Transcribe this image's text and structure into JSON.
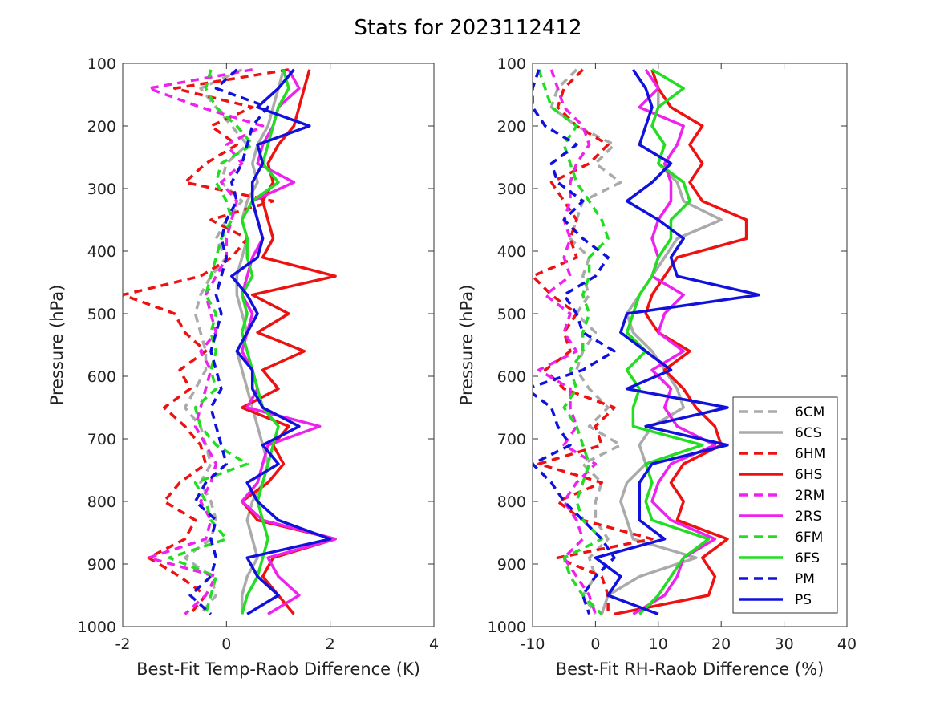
{
  "title": "Stats for 2023112412",
  "colors": {
    "6CM": "#aaaaaa",
    "6CS": "#aaaaaa",
    "6HM": "#ee1111",
    "6HS": "#ee1111",
    "2RM": "#ee22ee",
    "2RS": "#ee22ee",
    "6FM": "#22dd22",
    "6FS": "#22dd22",
    "PM": "#1111dd",
    "PS": "#1111dd"
  },
  "chart_data": [
    {
      "type": "line",
      "xlabel": "Best-Fit Temp-Raob Difference (K)",
      "ylabel": "Pressure (hPa)",
      "xlim": [
        -2,
        4
      ],
      "ylim": [
        1000,
        100
      ],
      "y_reversed": true,
      "xticks": [
        "-2",
        "0",
        "2",
        "4"
      ],
      "yticks": [
        "100",
        "200",
        "300",
        "400",
        "500",
        "600",
        "700",
        "800",
        "900",
        "1000"
      ],
      "y": [
        110,
        140,
        170,
        200,
        230,
        260,
        290,
        320,
        350,
        380,
        410,
        440,
        470,
        500,
        530,
        560,
        590,
        620,
        650,
        680,
        710,
        740,
        770,
        800,
        830,
        860,
        890,
        920,
        950,
        980
      ],
      "series": [
        {
          "name": "6CM",
          "dash": true,
          "values": [
            0.3,
            -0.5,
            -0.2,
            0.1,
            0.4,
            0.0,
            -0.1,
            0.3,
            0.0,
            -0.2,
            0.0,
            -0.3,
            -0.5,
            -0.6,
            -0.5,
            -0.4,
            -0.4,
            -0.6,
            -0.8,
            -0.5,
            -0.4,
            -0.3,
            -0.5,
            -0.3,
            -0.2,
            -0.3,
            -0.8,
            -0.3,
            -0.2,
            -0.5
          ]
        },
        {
          "name": "6CS",
          "dash": false,
          "values": [
            1.1,
            1.0,
            0.9,
            0.8,
            0.6,
            0.5,
            0.6,
            0.4,
            0.3,
            0.4,
            0.3,
            0.2,
            0.2,
            0.3,
            0.4,
            0.2,
            0.3,
            0.4,
            0.5,
            0.6,
            0.7,
            0.8,
            0.7,
            0.5,
            0.4,
            0.5,
            0.6,
            0.4,
            0.3,
            0.3
          ]
        },
        {
          "name": "6HM",
          "dash": true,
          "values": [
            1.2,
            -1.0,
            0.5,
            -0.3,
            0.2,
            -0.4,
            -0.8,
            0.9,
            -0.3,
            0.4,
            0.1,
            -0.5,
            -2.0,
            -1.0,
            -0.8,
            -0.4,
            -0.9,
            -0.7,
            -1.2,
            -0.8,
            -0.5,
            -0.4,
            -0.9,
            -1.2,
            -0.6,
            -0.8,
            -1.5,
            -0.9,
            -0.4,
            -0.7
          ]
        },
        {
          "name": "6HS",
          "dash": false,
          "values": [
            1.6,
            1.5,
            1.4,
            1.3,
            1.0,
            0.8,
            0.9,
            0.7,
            0.8,
            0.9,
            0.7,
            2.1,
            0.5,
            1.2,
            0.6,
            1.5,
            0.7,
            1.0,
            0.3,
            1.2,
            0.9,
            1.1,
            0.8,
            0.3,
            0.6,
            2.1,
            0.9,
            0.7,
            1.0,
            1.3
          ]
        },
        {
          "name": "2RM",
          "dash": true,
          "values": [
            0.5,
            -1.5,
            -0.5,
            0.7,
            0.0,
            0.3,
            -0.1,
            0.2,
            0.1,
            0.0,
            0.0,
            -0.2,
            -0.4,
            -0.3,
            -0.2,
            -0.5,
            -0.3,
            -0.4,
            -0.5,
            -0.6,
            -0.4,
            -0.2,
            -0.3,
            -0.5,
            -0.3,
            -0.4,
            -1.5,
            -0.2,
            -0.4,
            -0.8
          ]
        },
        {
          "name": "2RS",
          "dash": false,
          "values": [
            1.2,
            1.4,
            1.0,
            0.9,
            0.7,
            0.6,
            1.3,
            0.5,
            0.6,
            0.7,
            0.5,
            0.4,
            0.3,
            0.5,
            0.4,
            0.3,
            0.5,
            0.6,
            0.4,
            1.8,
            0.8,
            0.7,
            0.6,
            0.3,
            0.7,
            2.1,
            0.8,
            1.0,
            1.4,
            0.8
          ]
        },
        {
          "name": "6FM",
          "dash": true,
          "values": [
            -0.3,
            -0.4,
            -0.2,
            0.2,
            0.5,
            -0.1,
            -0.2,
            0.0,
            0.1,
            -0.1,
            -0.2,
            -0.3,
            -0.4,
            -0.2,
            -0.3,
            -0.2,
            -0.3,
            -0.2,
            -0.6,
            -0.5,
            -0.2,
            0.4,
            -0.6,
            -0.4,
            -0.3,
            0.0,
            -1.1,
            -0.2,
            -0.3,
            -0.4
          ]
        },
        {
          "name": "6FS",
          "dash": false,
          "values": [
            1.1,
            1.2,
            1.0,
            0.9,
            0.8,
            0.7,
            1.0,
            0.5,
            0.3,
            0.4,
            0.4,
            0.5,
            0.3,
            0.4,
            0.3,
            0.4,
            0.5,
            0.6,
            0.7,
            1.0,
            0.9,
            0.8,
            0.7,
            0.6,
            0.7,
            0.8,
            0.7,
            0.6,
            0.4,
            0.3
          ]
        },
        {
          "name": "PM",
          "dash": true,
          "values": [
            0.2,
            -0.2,
            0.8,
            0.5,
            0.4,
            0.3,
            0.1,
            0.2,
            0.0,
            -0.1,
            0.0,
            -0.1,
            -0.2,
            -0.1,
            -0.2,
            -0.3,
            -0.2,
            -0.1,
            -0.3,
            -0.2,
            -0.1,
            0.0,
            -0.4,
            -0.6,
            -0.2,
            -0.3,
            -0.2,
            -0.3,
            -0.7,
            -0.3
          ]
        },
        {
          "name": "PS",
          "dash": false,
          "values": [
            1.3,
            1.0,
            0.6,
            1.6,
            0.6,
            0.7,
            0.5,
            0.5,
            0.6,
            0.7,
            0.6,
            0.1,
            0.4,
            0.6,
            0.4,
            0.2,
            0.5,
            0.5,
            0.7,
            1.4,
            0.7,
            1.0,
            0.4,
            0.6,
            1.0,
            2.0,
            0.4,
            0.6,
            1.0,
            0.4
          ]
        }
      ]
    },
    {
      "type": "line",
      "xlabel": "Best-Fit RH-Raob Difference (%)",
      "ylabel": "Pressure (hPa)",
      "xlim": [
        -10,
        40
      ],
      "ylim": [
        1000,
        100
      ],
      "y_reversed": true,
      "xticks": [
        "-10",
        "0",
        "10",
        "20",
        "30",
        "40"
      ],
      "yticks": [
        "100",
        "200",
        "300",
        "400",
        "500",
        "600",
        "700",
        "800",
        "900",
        "1000"
      ],
      "y": [
        110,
        140,
        170,
        200,
        230,
        260,
        290,
        320,
        350,
        380,
        410,
        440,
        470,
        500,
        530,
        560,
        590,
        620,
        650,
        680,
        710,
        740,
        770,
        800,
        830,
        860,
        890,
        920,
        950,
        980
      ],
      "series": [
        {
          "name": "6CM",
          "dash": true,
          "values": [
            -3,
            -6,
            -7,
            -3,
            3,
            0,
            4,
            -2,
            -3,
            -4,
            -1,
            -2,
            -1,
            -3,
            0,
            -2,
            -3,
            -1,
            2,
            -1,
            4,
            -2,
            1,
            0,
            0,
            2,
            -1,
            0,
            -2,
            0
          ]
        },
        {
          "name": "6CS",
          "dash": false,
          "values": [
            9,
            10,
            10,
            9,
            11,
            10,
            13,
            14,
            20,
            13,
            11,
            9,
            7,
            5,
            6,
            9,
            11,
            13,
            14,
            9,
            7,
            8,
            5,
            4,
            5,
            6,
            16,
            7,
            2,
            1
          ]
        },
        {
          "name": "6HM",
          "dash": true,
          "values": [
            -2,
            -5,
            -6,
            -3,
            2,
            -1,
            -7,
            -5,
            -3,
            -4,
            -3,
            -10,
            -7,
            -3,
            -5,
            -4,
            -8,
            -5,
            3,
            0,
            1,
            -9,
            1,
            -6,
            -2,
            9,
            -6,
            1,
            2,
            2
          ]
        },
        {
          "name": "6HS",
          "dash": false,
          "values": [
            9,
            10,
            12,
            17,
            15,
            17,
            15,
            17,
            24,
            24,
            13,
            11,
            9,
            8,
            10,
            15,
            11,
            14,
            16,
            19,
            20,
            14,
            12,
            14,
            13,
            21,
            17,
            19,
            18,
            3
          ]
        },
        {
          "name": "2RM",
          "dash": true,
          "values": [
            -7,
            -6,
            -5,
            -2,
            -1,
            -3,
            -4,
            -4,
            -5,
            -4,
            -5,
            -4,
            -8,
            -4,
            -5,
            -3,
            -9,
            -4,
            -4,
            -3,
            -5,
            0,
            -3,
            -5,
            -3,
            -2,
            -5,
            -3,
            -1,
            0
          ]
        },
        {
          "name": "2RS",
          "dash": false,
          "values": [
            8,
            10,
            7,
            14,
            13,
            11,
            12,
            12,
            10,
            9,
            10,
            9,
            14,
            11,
            10,
            14,
            9,
            12,
            11,
            13,
            19,
            12,
            10,
            9,
            12,
            19,
            14,
            13,
            11,
            6
          ]
        },
        {
          "name": "6FM",
          "dash": true,
          "values": [
            -9,
            -8,
            -7,
            -3,
            -5,
            -4,
            -3,
            -1,
            1,
            2,
            -1,
            -1,
            -2,
            -1,
            -2,
            -2,
            -4,
            -3,
            -5,
            -3,
            -2,
            -1,
            -2,
            -3,
            -2,
            1,
            -5,
            -4,
            -2,
            1
          ]
        },
        {
          "name": "6FS",
          "dash": false,
          "values": [
            9,
            14,
            10,
            9,
            11,
            10,
            14,
            15,
            12,
            12,
            10,
            9,
            7,
            6,
            5,
            8,
            5,
            7,
            6,
            6,
            17,
            8,
            9,
            8,
            9,
            18,
            14,
            12,
            10,
            7
          ]
        },
        {
          "name": "PM",
          "dash": true,
          "values": [
            -9,
            -10,
            -10,
            -8,
            -3,
            -7,
            -6,
            -2,
            -5,
            -2,
            2,
            0,
            -5,
            -3,
            -2,
            3,
            -2,
            -11,
            -7,
            -6,
            -4,
            -10,
            -7,
            -5,
            -2,
            1,
            3,
            0,
            -2,
            -1
          ]
        },
        {
          "name": "PS",
          "dash": false,
          "values": [
            6,
            8,
            9,
            8,
            7,
            12,
            9,
            5,
            10,
            14,
            12,
            13,
            26,
            5,
            4,
            8,
            12,
            5,
            21,
            8,
            21,
            9,
            7,
            7,
            7,
            11,
            0,
            4,
            2,
            10
          ]
        }
      ]
    }
  ],
  "legend": {
    "entries": [
      "6CM",
      "6CS",
      "6HM",
      "6HS",
      "2RM",
      "2RS",
      "6FM",
      "6FS",
      "PM",
      "PS"
    ],
    "placement": "lower-right of right panel"
  }
}
